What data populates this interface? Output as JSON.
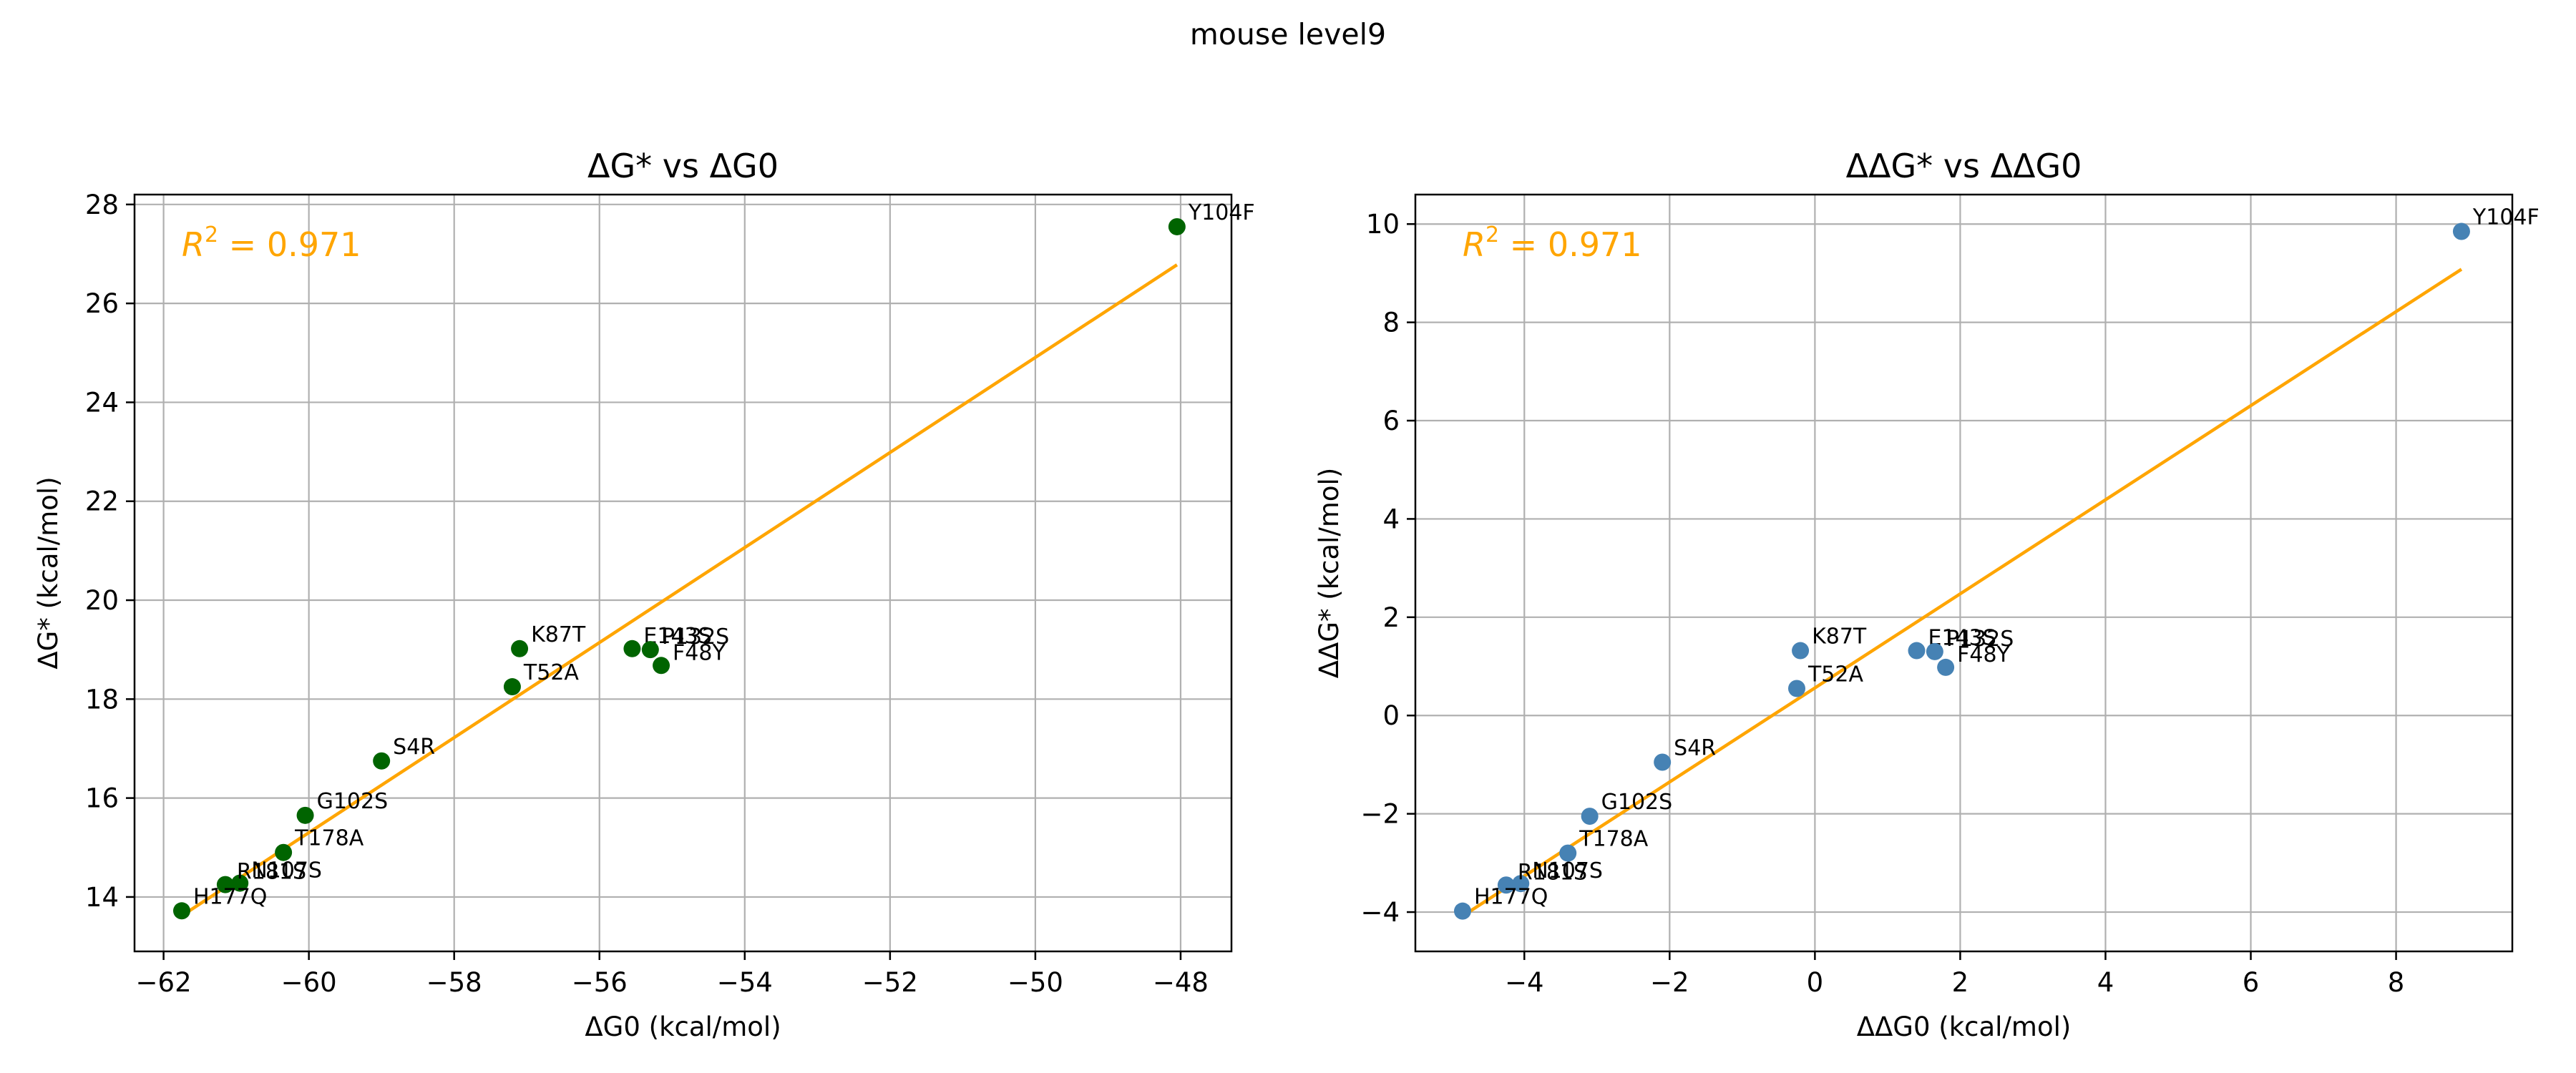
{
  "figure": {
    "suptitle": "mouse level9"
  },
  "chart_data": [
    {
      "type": "scatter",
      "title": "ΔG* vs ΔG0",
      "xlabel": "ΔG0 (kcal/mol)",
      "ylabel": "ΔG* (kcal/mol)",
      "xlim": [
        -62.4,
        -47.3
      ],
      "ylim": [
        12.9,
        28.2
      ],
      "xticks": [
        -62,
        -60,
        -58,
        -56,
        -54,
        -52,
        -50,
        -48
      ],
      "yticks": [
        14,
        16,
        18,
        20,
        22,
        24,
        26,
        28
      ],
      "grid": true,
      "marker_color": "#006400",
      "fit_color": "#ffa500",
      "annotation": {
        "r2_label": "R",
        "r2_exp": "2",
        "r2_value": " = 0.971"
      },
      "points": [
        {
          "label": "Y104F",
          "x": -48.05,
          "y": 27.55
        },
        {
          "label": "K87T",
          "x": -57.1,
          "y": 19.02
        },
        {
          "label": "E143S",
          "x": -55.55,
          "y": 19.02
        },
        {
          "label": "P132S",
          "x": -55.3,
          "y": 19.0
        },
        {
          "label": "F48Y",
          "x": -55.15,
          "y": 18.68
        },
        {
          "label": "T52A",
          "x": -57.2,
          "y": 18.25
        },
        {
          "label": "S4R",
          "x": -59.0,
          "y": 16.75
        },
        {
          "label": "G102S",
          "x": -60.05,
          "y": 15.65
        },
        {
          "label": "T178A",
          "x": -60.35,
          "y": 14.9
        },
        {
          "label": "N107S",
          "x": -60.95,
          "y": 14.28
        },
        {
          "label": "R181S",
          "x": -61.15,
          "y": 14.25
        },
        {
          "label": "H177Q",
          "x": -61.75,
          "y": 13.72
        }
      ],
      "fit": {
        "x": [
          -61.75,
          -48.05
        ],
        "y": [
          13.62,
          26.78
        ]
      }
    },
    {
      "type": "scatter",
      "title": "ΔΔG* vs ΔΔG0",
      "xlabel": "ΔΔG0 (kcal/mol)",
      "ylabel": "ΔΔG* (kcal/mol)",
      "xlim": [
        -5.5,
        9.6
      ],
      "ylim": [
        -4.8,
        10.6
      ],
      "xticks": [
        -4,
        -2,
        0,
        2,
        4,
        6,
        8
      ],
      "yticks": [
        -4,
        -2,
        0,
        2,
        4,
        6,
        8,
        10
      ],
      "grid": true,
      "marker_color": "#4682b4",
      "fit_color": "#ffa500",
      "annotation": {
        "r2_label": "R",
        "r2_exp": "2",
        "r2_value": " = 0.971"
      },
      "points": [
        {
          "label": "Y104F",
          "x": 8.9,
          "y": 9.85
        },
        {
          "label": "K87T",
          "x": -0.2,
          "y": 1.32
        },
        {
          "label": "E143S",
          "x": 1.4,
          "y": 1.32
        },
        {
          "label": "P132S",
          "x": 1.65,
          "y": 1.3
        },
        {
          "label": "F48Y",
          "x": 1.8,
          "y": 0.98
        },
        {
          "label": "T52A",
          "x": -0.25,
          "y": 0.55
        },
        {
          "label": "S4R",
          "x": -2.1,
          "y": -0.95
        },
        {
          "label": "G102S",
          "x": -3.1,
          "y": -2.05
        },
        {
          "label": "T178A",
          "x": -3.4,
          "y": -2.8
        },
        {
          "label": "N107S",
          "x": -4.05,
          "y": -3.42
        },
        {
          "label": "R181S",
          "x": -4.25,
          "y": -3.45
        },
        {
          "label": "H177Q",
          "x": -4.85,
          "y": -3.98
        }
      ],
      "fit": {
        "x": [
          -4.85,
          8.9
        ],
        "y": [
          -4.08,
          9.08
        ]
      }
    }
  ]
}
